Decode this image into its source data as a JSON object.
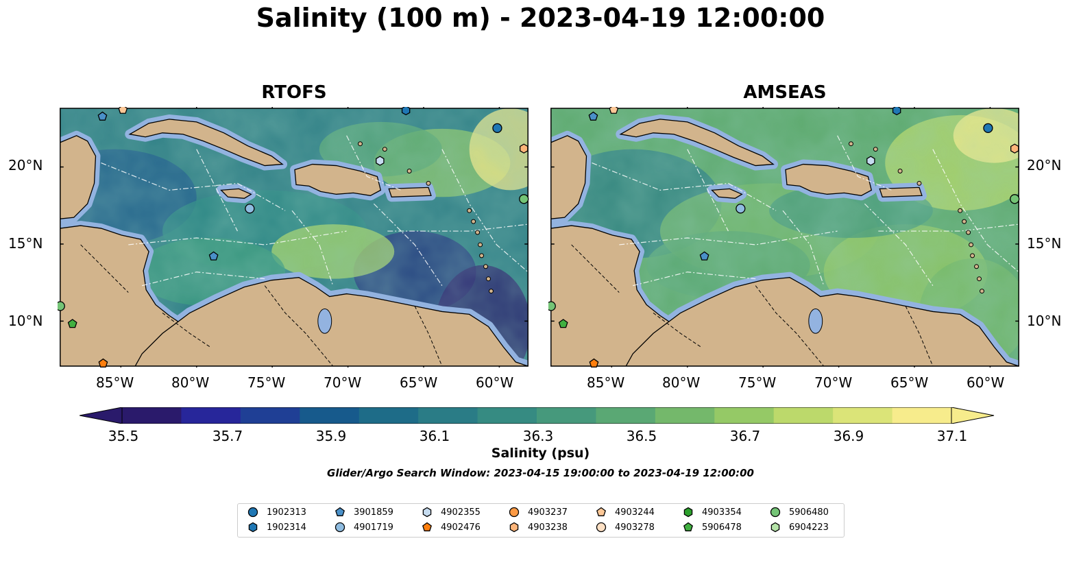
{
  "title": "Salinity (100 m) - 2023-04-19 12:00:00",
  "panels": [
    {
      "title": "RTOFS",
      "theme": "rtofs"
    },
    {
      "title": "AMSEAS",
      "theme": "amseas"
    }
  ],
  "lon_ticks": [
    "85°W",
    "80°W",
    "75°W",
    "70°W",
    "65°W",
    "60°W"
  ],
  "lat_ticks": [
    "20°N",
    "15°N",
    "10°N"
  ],
  "colorbar": {
    "ticks": [
      "35.5",
      "35.7",
      "35.9",
      "36.1",
      "36.3",
      "36.5",
      "36.7",
      "36.9",
      "37.1"
    ],
    "label": "Salinity (psu)",
    "colors": [
      "#2a1a6b",
      "#27269a",
      "#1f3f95",
      "#175a8c",
      "#1e6c88",
      "#2a7c86",
      "#368b82",
      "#46997c",
      "#5aa874",
      "#74b86b",
      "#95c966",
      "#bcd96b",
      "#dbe478",
      "#f7ec8c"
    ]
  },
  "note": "Glider/Argo Search Window: 2023-04-15 19:00:00 to 2023-04-19 12:00:00",
  "legend": [
    {
      "id": "1902313",
      "shape": "circle",
      "color": "#1f77b4"
    },
    {
      "id": "1902314",
      "shape": "hexagon",
      "color": "#1f77b4"
    },
    {
      "id": "3901859",
      "shape": "pentagon",
      "color": "#4a90c8"
    },
    {
      "id": "4901719",
      "shape": "circle",
      "color": "#8fbce0"
    },
    {
      "id": "4902355",
      "shape": "hexagon",
      "color": "#c6dcf0"
    },
    {
      "id": "4902476",
      "shape": "pentagon",
      "color": "#ff7f0e"
    },
    {
      "id": "4903237",
      "shape": "circle",
      "color": "#fd9a44"
    },
    {
      "id": "4903238",
      "shape": "hexagon",
      "color": "#fdb57a"
    },
    {
      "id": "4903244",
      "shape": "pentagon",
      "color": "#fdc897"
    },
    {
      "id": "4903278",
      "shape": "circle",
      "color": "#fde0c4"
    },
    {
      "id": "4903354",
      "shape": "hexagon",
      "color": "#2ca02c"
    },
    {
      "id": "5906478",
      "shape": "pentagon",
      "color": "#41b041"
    },
    {
      "id": "5906480",
      "shape": "circle",
      "color": "#74c476"
    },
    {
      "id": "6904223",
      "shape": "hexagon",
      "color": "#b5e3a8"
    }
  ]
}
